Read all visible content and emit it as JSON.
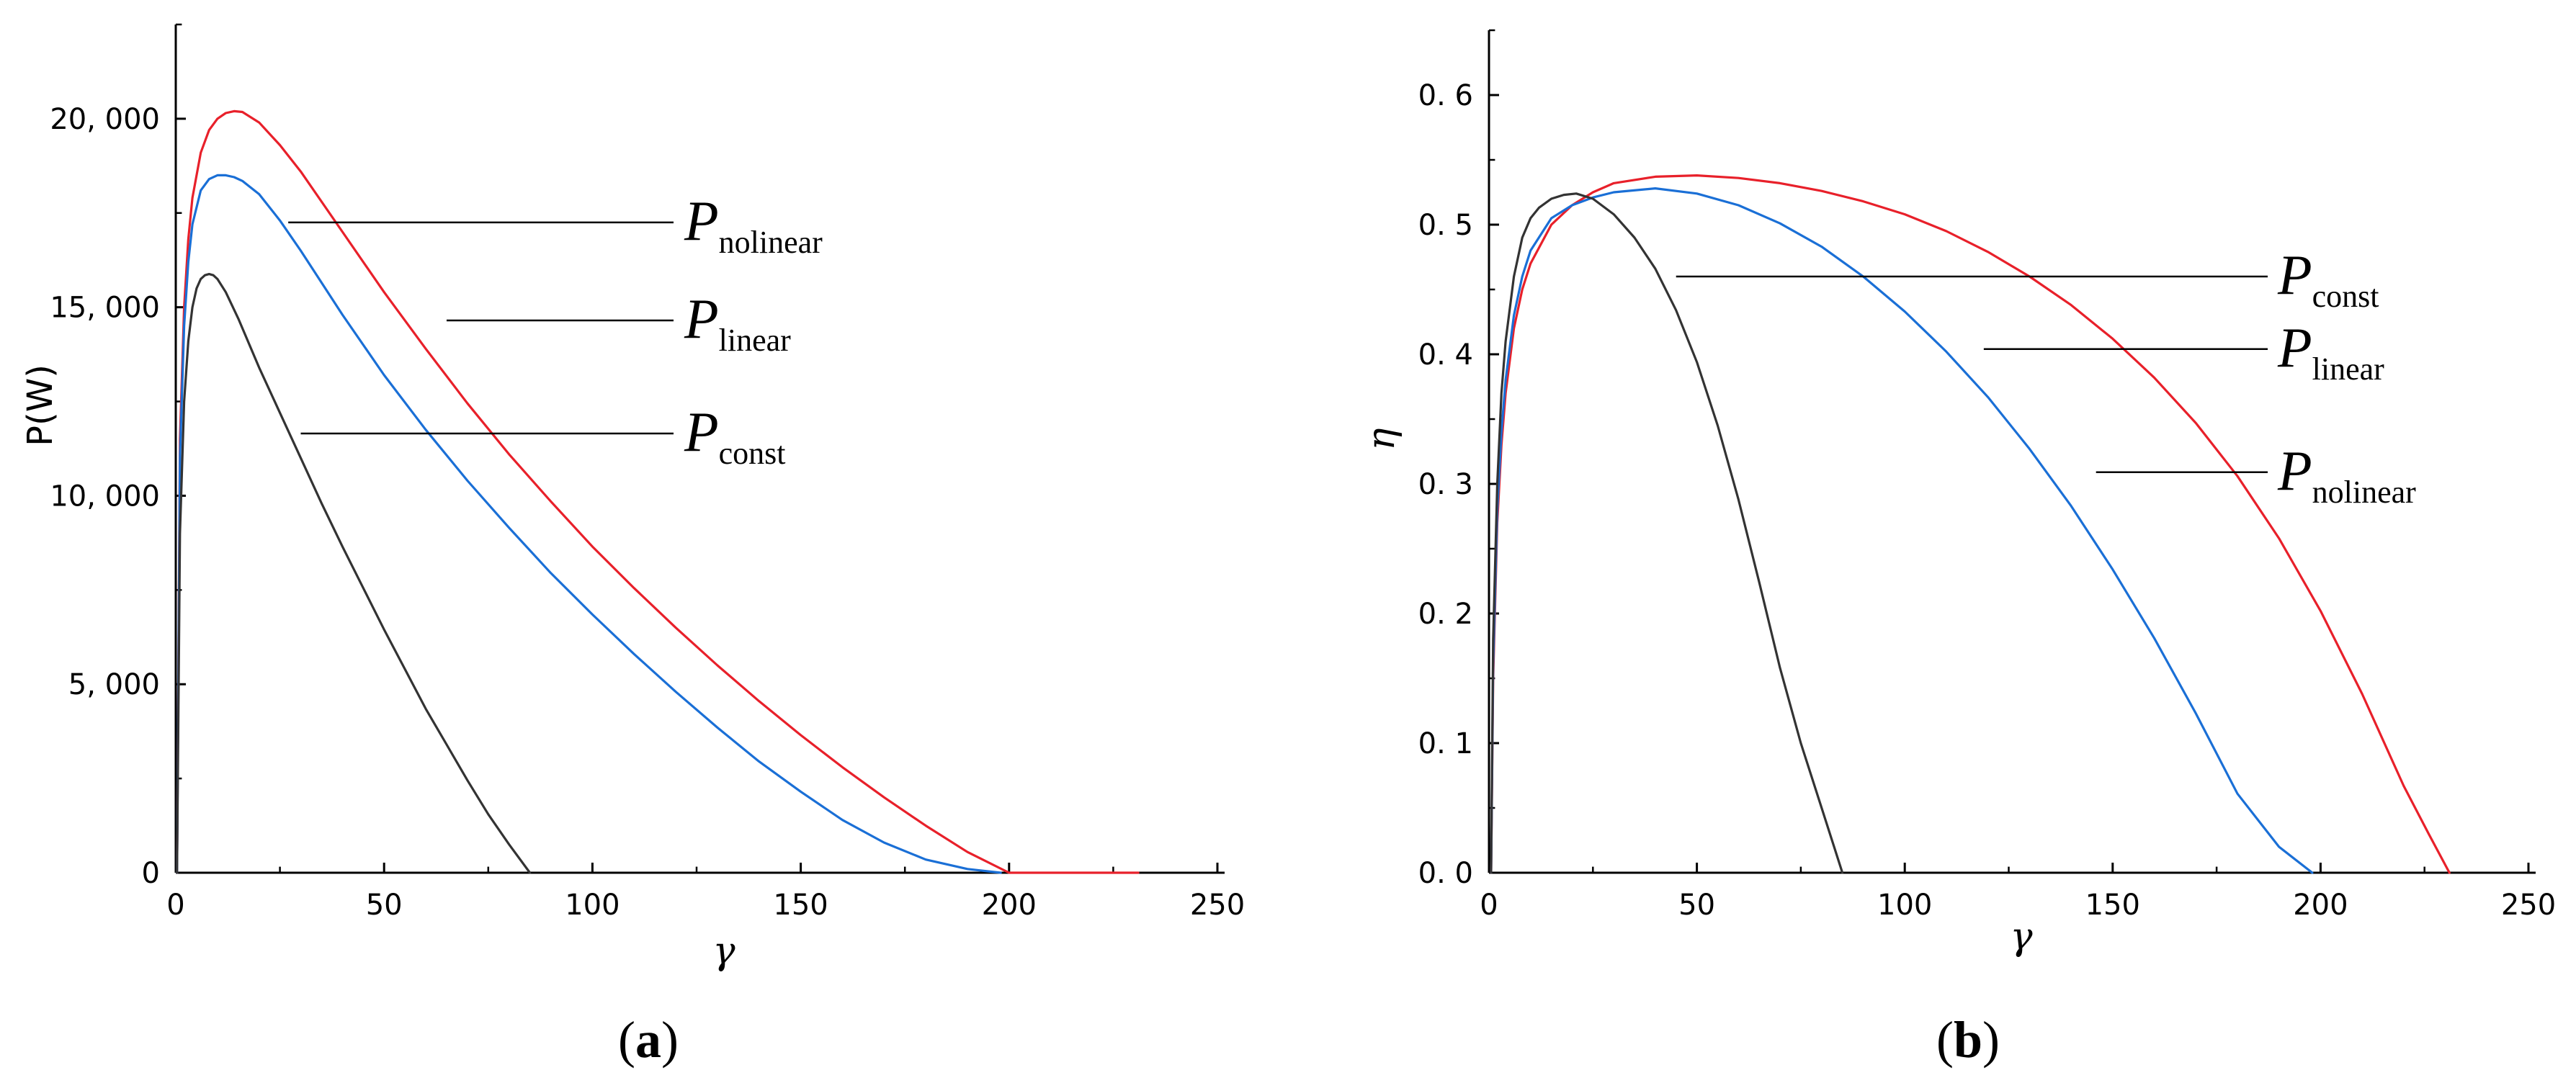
{
  "chart_data": [
    {
      "type": "line",
      "panel_label": "a",
      "xlabel": "γ",
      "ylabel": "P(W)",
      "xlim": [
        0,
        250
      ],
      "ylim": [
        0,
        22500
      ],
      "x_ticks": [
        0,
        50,
        100,
        150,
        200,
        250
      ],
      "x_tick_labels": [
        "0",
        "50",
        "100",
        "150",
        "200",
        "250"
      ],
      "y_ticks": [
        0,
        5000,
        10000,
        15000,
        20000
      ],
      "y_tick_labels": [
        "0",
        "5, 000",
        "10, 000",
        "15, 000",
        "20, 000"
      ],
      "grid": false,
      "series": [
        {
          "name": "P_nolinear",
          "color": "#e8202a",
          "x": [
            0.3,
            1,
            2,
            3,
            4,
            6,
            8,
            10,
            12,
            14,
            16,
            20,
            25,
            30,
            40,
            50,
            60,
            70,
            80,
            90,
            100,
            110,
            120,
            130,
            140,
            150,
            160,
            170,
            180,
            190,
            200,
            210,
            220,
            231
          ],
          "y": [
            0,
            11500,
            15000,
            16800,
            17900,
            19100,
            19700,
            20000,
            20150,
            20200,
            20180,
            19900,
            19300,
            18600,
            17000,
            15400,
            13900,
            12450,
            11100,
            9850,
            8650,
            7550,
            6500,
            5500,
            4550,
            3650,
            2800,
            2000,
            1250,
            550,
            0,
            0,
            0,
            0
          ]
        },
        {
          "name": "P_linear",
          "color": "#1a6fd6",
          "x": [
            0.3,
            1,
            2,
            3,
            4,
            6,
            8,
            10,
            12,
            14,
            16,
            20,
            25,
            30,
            40,
            50,
            60,
            70,
            80,
            90,
            100,
            110,
            120,
            130,
            140,
            150,
            160,
            170,
            180,
            190,
            198
          ],
          "y": [
            0,
            11000,
            14500,
            16200,
            17200,
            18100,
            18400,
            18500,
            18500,
            18450,
            18350,
            18000,
            17300,
            16500,
            14800,
            13200,
            11750,
            10400,
            9150,
            7950,
            6850,
            5800,
            4800,
            3850,
            2950,
            2150,
            1400,
            800,
            350,
            100,
            0
          ]
        },
        {
          "name": "P_const",
          "color": "#333333",
          "x": [
            0.3,
            1,
            2,
            3,
            4,
            5,
            6,
            7,
            8,
            9,
            10,
            12,
            15,
            20,
            25,
            30,
            35,
            40,
            45,
            50,
            55,
            60,
            65,
            70,
            75,
            80,
            85
          ],
          "y": [
            0,
            9000,
            12500,
            14100,
            15000,
            15500,
            15750,
            15850,
            15880,
            15850,
            15750,
            15400,
            14700,
            13400,
            12200,
            11000,
            9800,
            8650,
            7550,
            6450,
            5400,
            4350,
            3400,
            2450,
            1550,
            750,
            0
          ]
        }
      ],
      "annotations": [
        {
          "text": "P",
          "subscript": "nolinear",
          "target_series": "P_nolinear",
          "line_x_start": 27,
          "line_y": 17250
        },
        {
          "text": "P",
          "subscript": "linear",
          "target_series": "P_linear",
          "line_x_start": 65,
          "line_y": 14650
        },
        {
          "text": "P",
          "subscript": "const",
          "target_series": "P_const",
          "line_x_start": 30,
          "line_y": 11650
        }
      ]
    },
    {
      "type": "line",
      "panel_label": "b",
      "xlabel": "γ",
      "ylabel": "η",
      "xlim": [
        0,
        250
      ],
      "ylim": [
        0,
        0.65
      ],
      "x_ticks": [
        0,
        50,
        100,
        150,
        200,
        250
      ],
      "x_tick_labels": [
        "0",
        "50",
        "100",
        "150",
        "200",
        "250"
      ],
      "y_ticks": [
        0,
        0.1,
        0.2,
        0.3,
        0.4,
        0.5,
        0.6
      ],
      "y_tick_labels": [
        "0. 0",
        "0. 1",
        "0. 2",
        "0. 3",
        "0. 4",
        "0. 5",
        "0. 6"
      ],
      "grid": false,
      "series": [
        {
          "name": "P_nolinear",
          "color": "#e8202a",
          "x": [
            0.5,
            1,
            2,
            3,
            4,
            6,
            8,
            10,
            15,
            20,
            25,
            30,
            40,
            50,
            60,
            70,
            80,
            90,
            100,
            110,
            120,
            130,
            140,
            150,
            160,
            170,
            180,
            190,
            200,
            210,
            220,
            226,
            231
          ],
          "y": [
            0,
            0.15,
            0.27,
            0.33,
            0.37,
            0.42,
            0.45,
            0.47,
            0.5,
            0.515,
            0.525,
            0.532,
            0.537,
            0.538,
            0.536,
            0.532,
            0.526,
            0.518,
            0.508,
            0.495,
            0.479,
            0.46,
            0.438,
            0.412,
            0.382,
            0.347,
            0.306,
            0.258,
            0.202,
            0.138,
            0.067,
            0.03,
            0
          ]
        },
        {
          "name": "P_linear",
          "color": "#1a6fd6",
          "x": [
            0.5,
            1,
            2,
            3,
            4,
            6,
            8,
            10,
            15,
            20,
            25,
            30,
            40,
            50,
            60,
            70,
            80,
            90,
            100,
            110,
            120,
            130,
            140,
            150,
            160,
            170,
            180,
            190,
            198
          ],
          "y": [
            0,
            0.16,
            0.28,
            0.34,
            0.38,
            0.43,
            0.46,
            0.48,
            0.505,
            0.515,
            0.521,
            0.525,
            0.528,
            0.524,
            0.515,
            0.501,
            0.483,
            0.46,
            0.433,
            0.402,
            0.367,
            0.327,
            0.283,
            0.234,
            0.181,
            0.123,
            0.061,
            0.02,
            0
          ]
        },
        {
          "name": "P_const",
          "color": "#333333",
          "x": [
            0.5,
            1,
            2,
            3,
            4,
            6,
            8,
            10,
            12,
            15,
            18,
            21,
            25,
            30,
            35,
            40,
            45,
            50,
            55,
            60,
            65,
            70,
            75,
            80,
            83,
            85
          ],
          "y": [
            0,
            0.18,
            0.3,
            0.37,
            0.41,
            0.46,
            0.49,
            0.505,
            0.513,
            0.52,
            0.523,
            0.524,
            0.52,
            0.508,
            0.49,
            0.466,
            0.434,
            0.394,
            0.345,
            0.288,
            0.224,
            0.158,
            0.1,
            0.05,
            0.02,
            0
          ]
        }
      ],
      "annotations": [
        {
          "text": "P",
          "subscript": "const",
          "target_series": "P_const",
          "line_x_start": 45,
          "line_y": 0.46
        },
        {
          "text": "P",
          "subscript": "linear",
          "target_series": "P_linear",
          "line_x_start": 119,
          "line_y": 0.404
        },
        {
          "text": "P",
          "subscript": "nolinear",
          "target_series": "P_nolinear",
          "line_x_start": 146,
          "line_y": 0.309
        }
      ]
    }
  ],
  "captions": {
    "a": {
      "open": "(",
      "letter": "a",
      "close": ")"
    },
    "b": {
      "open": "(",
      "letter": "b",
      "close": ")"
    }
  }
}
